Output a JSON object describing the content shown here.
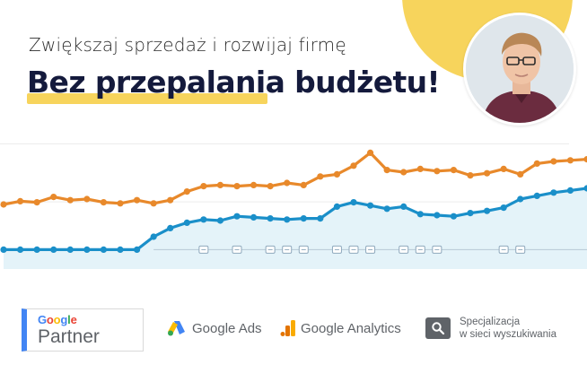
{
  "header": {
    "subtitle": "Zwiększaj sprzedaż i rozwijaj firmę",
    "headline": "Bez przepalania budżetu!"
  },
  "colors": {
    "accent_yellow": "#f7d45c",
    "orange_series": "#e8892b",
    "blue_series": "#1a8fc9",
    "blue_fill": "#e4f3f9",
    "headline_navy": "#141a3c"
  },
  "chart_data": {
    "type": "line",
    "x": [
      0,
      1,
      2,
      3,
      4,
      5,
      6,
      7,
      8,
      9,
      10,
      11,
      12,
      13,
      14,
      15,
      16,
      17,
      18,
      19,
      20,
      21,
      22,
      23,
      24,
      25,
      26,
      27,
      28,
      29,
      30,
      31,
      32,
      33,
      34,
      35
    ],
    "series": [
      {
        "values": [
          60,
          63,
          62,
          67,
          64,
          65,
          62,
          61,
          64,
          61,
          64,
          72,
          77,
          78,
          77,
          78,
          77,
          80,
          78,
          86,
          88,
          96,
          108,
          92,
          90,
          93,
          91,
          92,
          87,
          89,
          93,
          88,
          98,
          100,
          101,
          102
        ]
      },
      {
        "values": [
          18,
          18,
          18,
          18,
          18,
          18,
          18,
          18,
          18,
          30,
          38,
          43,
          46,
          45,
          49,
          48,
          47,
          46,
          47,
          47,
          58,
          62,
          59,
          56,
          58,
          51,
          50,
          49,
          52,
          54,
          57,
          65,
          68,
          71,
          73,
          75
        ]
      }
    ],
    "annotation_markers_x": [
      12,
      14,
      16,
      17,
      18,
      20,
      21,
      22,
      24,
      25,
      26,
      30,
      31
    ],
    "ylim": [
      0,
      120
    ],
    "grid": true,
    "legend": "none"
  },
  "logos": {
    "partner_google": [
      "G",
      "o",
      "o",
      "g",
      "l",
      "e"
    ],
    "partner_label": "Partner",
    "ads": "Google Ads",
    "analytics": "Google Analytics",
    "specialization_line1": "Specjalizacja",
    "specialization_line2": "w sieci wyszukiwania",
    "icons": [
      "google-ads-icon",
      "google-analytics-icon",
      "search-icon"
    ]
  }
}
